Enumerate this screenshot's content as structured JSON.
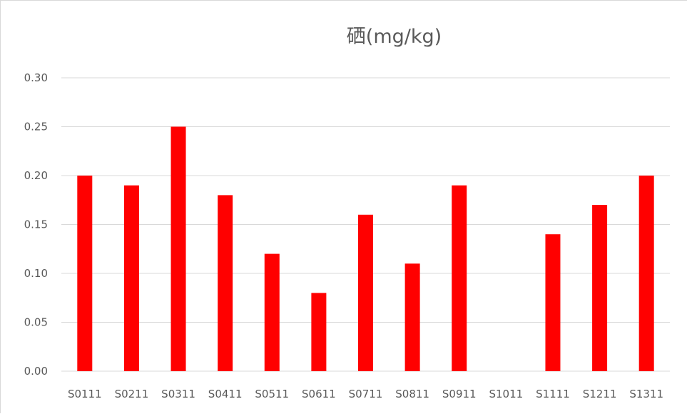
{
  "chart_data": {
    "type": "bar",
    "title": "硒(mg/kg)",
    "xlabel": "",
    "ylabel": "",
    "categories": [
      "S0111",
      "S0211",
      "S0311",
      "S0411",
      "S0511",
      "S0611",
      "S0711",
      "S0811",
      "S0911",
      "S1011",
      "S1111",
      "S1211",
      "S1311"
    ],
    "values": [
      0.2,
      0.19,
      0.25,
      0.18,
      0.12,
      0.08,
      0.16,
      0.11,
      0.19,
      0,
      0.14,
      0.17,
      0.2
    ],
    "ylim": [
      0,
      0.3
    ],
    "yticks": [
      "0.00",
      "0.05",
      "0.10",
      "0.15",
      "0.20",
      "0.25",
      "0.30"
    ],
    "grid": true,
    "legend": "none",
    "bar_color": "#ff0000",
    "grid_color": "#d9d9d9",
    "text_color": "#595959"
  }
}
